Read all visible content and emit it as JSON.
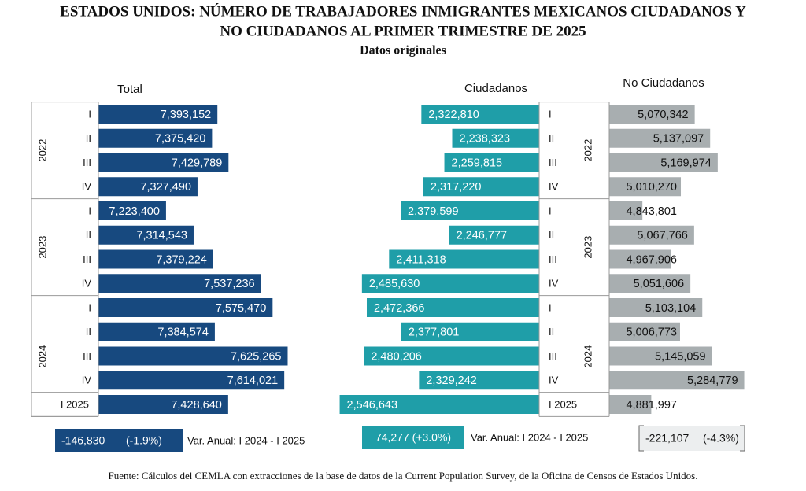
{
  "title": [
    "ESTADOS UNIDOS: NÚMERO DE TRABAJADORES INMIGRANTES MEXICANOS CIUDADANOS Y",
    "NO CIUDADANOS AL PRIMER TRIMESTRE DE 2025"
  ],
  "subtitle": "Datos originales",
  "source": "Fuente: Cálculos del CEMLA con extracciones de la base de datos de la Current Population Survey, de la Oficina de Censos de Estados Unidos.",
  "chart_data": [
    {
      "type": "bar",
      "orientation": "horizontal",
      "title": "Total",
      "color": "#17497f",
      "categories": [
        "I",
        "II",
        "III",
        "IV",
        "I",
        "II",
        "III",
        "IV",
        "I",
        "II",
        "III",
        "IV",
        "I 2025"
      ],
      "years": [
        "2022",
        "2023",
        "2024"
      ],
      "values": [
        7393152,
        7375420,
        7429789,
        7327490,
        7223400,
        7314543,
        7379224,
        7537236,
        7575470,
        7384574,
        7625265,
        7614021,
        7428640
      ],
      "value_labels": [
        "7,393,152",
        "7,375,420",
        "7,429,789",
        "7,327,490",
        "7,223,400",
        "7,314,543",
        "7,379,224",
        "7,537,236",
        "7,575,470",
        "7,384,574",
        "7,625,265",
        "7,614,021",
        "7,428,640"
      ],
      "xlim": [
        7000000,
        7650000
      ],
      "annotation": [
        "-146,830",
        "(-1.9%)"
      ],
      "note": "Var. Anual: I 2024 - I 2025"
    },
    {
      "type": "bar",
      "orientation": "horizontal",
      "title": "Ciudadanos",
      "color": "#1f9ea8",
      "categories": [
        "I",
        "II",
        "III",
        "IV",
        "I",
        "II",
        "III",
        "IV",
        "I",
        "II",
        "III",
        "IV",
        "I 2025"
      ],
      "years": [
        "2022",
        "2023",
        "2024"
      ],
      "values": [
        2322810,
        2238323,
        2259815,
        2317220,
        2379599,
        2246777,
        2411318,
        2485630,
        2472366,
        2377801,
        2480206,
        2329242,
        2546643
      ],
      "value_labels": [
        "2,322,810",
        "2,238,323",
        "2,259,815",
        "2,317,220",
        "2,379,599",
        "2,246,777",
        "2,411,318",
        "2,485,630",
        "2,472,366",
        "2,377,801",
        "2,480,206",
        "2,329,242",
        "2,546,643"
      ],
      "xlim": [
        2000000,
        2550000
      ],
      "annotation": [
        "74,277 (+3.0%)"
      ],
      "note": "Var. Anual: I 2024 - I 2025"
    },
    {
      "type": "bar",
      "orientation": "horizontal",
      "title": "No Ciudadanos",
      "color": "#a8aeb0",
      "values": [
        5070342,
        5137097,
        5169974,
        5010270,
        4843801,
        5067766,
        4967906,
        5051606,
        5103104,
        5006773,
        5145059,
        5284779,
        4881997
      ],
      "value_labels": [
        "5,070,342",
        "5,137,097",
        "5,169,974",
        "5,010,270",
        "4,843,801",
        "5,067,766",
        "4,967,906",
        "5,051,606",
        "5,103,104",
        "5,006,773",
        "5,145,059",
        "5,284,779",
        "4,881,997"
      ],
      "xlim": [
        4700000,
        5300000
      ],
      "annotation": [
        "-221,107",
        "(-4.3%)"
      ]
    }
  ]
}
